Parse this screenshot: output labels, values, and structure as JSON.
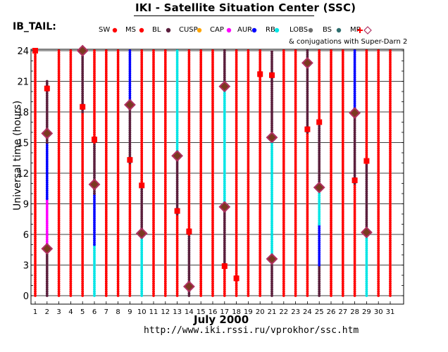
{
  "title": "IKI - Satellite Situation Center (SSC)",
  "panel_label": "IB_TAIL:",
  "legend": [
    {
      "label": "SW",
      "color": "#ff0000",
      "marker": "dot"
    },
    {
      "label": "MS",
      "color": "#ff0000",
      "marker": "dot"
    },
    {
      "label": "BL",
      "color": "#5a1e3c",
      "marker": "dot"
    },
    {
      "label": "CUSP",
      "color": "#ffa500",
      "marker": "dot"
    },
    {
      "label": "CAP",
      "color": "#ff00ff",
      "marker": "dot"
    },
    {
      "label": "AUR",
      "color": "#0000ff",
      "marker": "dot"
    },
    {
      "label": "RB",
      "color": "#00e5e5",
      "marker": "dot"
    },
    {
      "label": "LOBS",
      "color": "#707070",
      "marker": "dot"
    },
    {
      "label": "BS",
      "color": "#2e6e6e",
      "marker": "dot"
    },
    {
      "label": "MP",
      "color": "#ff0000",
      "marker": "cross"
    },
    {
      "label": "",
      "color": "#b03060",
      "marker": "diamond"
    }
  ],
  "conjugations_note": "& conjugations with Super-Darn 2",
  "x_axis_label": "July    2000",
  "y_axis_label": "Universal time (hours)",
  "url": "http://www.iki.rssi.ru/vprokhor/ssc.htm",
  "colors": {
    "SW": "#ff0000",
    "BL": "#5a1e3c",
    "CUSP": "#ffa500",
    "CAP": "#ff00ff",
    "AUR": "#0000ff",
    "RB": "#00e5e5",
    "LOBS": "#707070",
    "BS": "#2e6e6e",
    "diamond_edge": "#b03060",
    "diamond_fill": "#7a3a20"
  },
  "chart_data": {
    "type": "scatter",
    "xlabel": "July    2000",
    "ylabel": "Universal time (hours)",
    "xlim": [
      1,
      31
    ],
    "ylim": [
      0,
      24
    ],
    "x_ticks": [
      1,
      2,
      3,
      4,
      5,
      6,
      7,
      8,
      9,
      10,
      11,
      12,
      13,
      14,
      15,
      16,
      17,
      18,
      19,
      20,
      21,
      22,
      23,
      24,
      25,
      26,
      27,
      28,
      29,
      30,
      31
    ],
    "y_ticks": [
      0,
      3,
      6,
      9,
      12,
      15,
      18,
      21,
      24
    ],
    "grid": true,
    "columns": [
      {
        "day": 1,
        "segments": [
          {
            "from": 0,
            "to": 24,
            "region": "SW"
          }
        ]
      },
      {
        "day": 2,
        "segments": [
          {
            "from": 0,
            "to": 4.5,
            "region": "BL"
          },
          {
            "from": 4.5,
            "to": 9.5,
            "region": "CAP"
          },
          {
            "from": 9.5,
            "to": 15,
            "region": "AUR"
          },
          {
            "from": 15,
            "to": 21,
            "region": "BL"
          }
        ]
      },
      {
        "day": 3,
        "segments": [
          {
            "from": 0,
            "to": 24,
            "region": "SW"
          }
        ]
      },
      {
        "day": 4,
        "segments": [
          {
            "from": 0,
            "to": 24,
            "region": "SW"
          }
        ]
      },
      {
        "day": 5,
        "segments": [
          {
            "from": 0,
            "to": 18,
            "region": "SW"
          },
          {
            "from": 18,
            "to": 24,
            "region": "BL"
          }
        ]
      },
      {
        "day": 6,
        "segments": [
          {
            "from": 0,
            "to": 5,
            "region": "RB"
          },
          {
            "from": 5,
            "to": 10,
            "region": "AUR"
          },
          {
            "from": 10,
            "to": 15,
            "region": "BL"
          },
          {
            "from": 15,
            "to": 24,
            "region": "SW"
          }
        ]
      },
      {
        "day": 7,
        "segments": [
          {
            "from": 0,
            "to": 24,
            "region": "SW"
          }
        ]
      },
      {
        "day": 8,
        "segments": [
          {
            "from": 0,
            "to": 24,
            "region": "SW"
          }
        ]
      },
      {
        "day": 9,
        "segments": [
          {
            "from": 0,
            "to": 13,
            "region": "SW"
          },
          {
            "from": 13,
            "to": 19,
            "region": "BL"
          },
          {
            "from": 19,
            "to": 24,
            "region": "AUR"
          }
        ]
      },
      {
        "day": 10,
        "segments": [
          {
            "from": 0,
            "to": 6,
            "region": "RB"
          },
          {
            "from": 6,
            "to": 11,
            "region": "BL"
          },
          {
            "from": 11,
            "to": 24,
            "region": "SW"
          }
        ]
      },
      {
        "day": 11,
        "segments": [
          {
            "from": 0,
            "to": 24,
            "region": "SW"
          }
        ]
      },
      {
        "day": 12,
        "segments": [
          {
            "from": 0,
            "to": 24,
            "region": "SW"
          }
        ]
      },
      {
        "day": 13,
        "segments": [
          {
            "from": 0,
            "to": 8,
            "region": "SW"
          },
          {
            "from": 8,
            "to": 14,
            "region": "BL"
          },
          {
            "from": 14,
            "to": 24,
            "region": "RB"
          }
        ]
      },
      {
        "day": 14,
        "segments": [
          {
            "from": 0,
            "to": 6,
            "region": "BL"
          },
          {
            "from": 6,
            "to": 24,
            "region": "SW"
          }
        ]
      },
      {
        "day": 15,
        "segments": [
          {
            "from": 0,
            "to": 24,
            "region": "SW"
          }
        ]
      },
      {
        "day": 16,
        "segments": [
          {
            "from": 0,
            "to": 24,
            "region": "SW"
          }
        ]
      },
      {
        "day": 17,
        "segments": [
          {
            "from": 0,
            "to": 3,
            "region": "SW"
          },
          {
            "from": 3,
            "to": 9,
            "region": "BL"
          },
          {
            "from": 9,
            "to": 21,
            "region": "RB"
          },
          {
            "from": 21,
            "to": 24,
            "region": "BL"
          }
        ]
      },
      {
        "day": 18,
        "segments": [
          {
            "from": 0,
            "to": 24,
            "region": "SW"
          }
        ]
      },
      {
        "day": 19,
        "segments": [
          {
            "from": 0,
            "to": 24,
            "region": "SW"
          }
        ]
      },
      {
        "day": 20,
        "segments": [
          {
            "from": 0,
            "to": 24,
            "region": "SW"
          }
        ]
      },
      {
        "day": 21,
        "segments": [
          {
            "from": 0,
            "to": 3.5,
            "region": "BL"
          },
          {
            "from": 3.5,
            "to": 15.5,
            "region": "RB"
          },
          {
            "from": 15.5,
            "to": 24,
            "region": "BL"
          }
        ]
      },
      {
        "day": 22,
        "segments": [
          {
            "from": 0,
            "to": 24,
            "region": "SW"
          }
        ]
      },
      {
        "day": 23,
        "segments": [
          {
            "from": 0,
            "to": 24,
            "region": "SW"
          }
        ]
      },
      {
        "day": 24,
        "segments": [
          {
            "from": 0,
            "to": 16,
            "region": "SW"
          },
          {
            "from": 16,
            "to": 24,
            "region": "BL"
          }
        ]
      },
      {
        "day": 25,
        "segments": [
          {
            "from": 0,
            "to": 3,
            "region": "BL"
          },
          {
            "from": 3,
            "to": 7,
            "region": "AUR"
          },
          {
            "from": 7,
            "to": 11,
            "region": "RB"
          },
          {
            "from": 11,
            "to": 17,
            "region": "BL"
          },
          {
            "from": 17,
            "to": 24,
            "region": "SW"
          }
        ]
      },
      {
        "day": 26,
        "segments": [
          {
            "from": 0,
            "to": 24,
            "region": "SW"
          }
        ]
      },
      {
        "day": 27,
        "segments": [
          {
            "from": 0,
            "to": 24,
            "region": "SW"
          }
        ]
      },
      {
        "day": 28,
        "segments": [
          {
            "from": 0,
            "to": 11,
            "region": "SW"
          },
          {
            "from": 11,
            "to": 18,
            "region": "BL"
          },
          {
            "from": 18,
            "to": 24,
            "region": "AUR"
          }
        ]
      },
      {
        "day": 29,
        "segments": [
          {
            "from": 0,
            "to": 6,
            "region": "RB"
          },
          {
            "from": 6,
            "to": 13,
            "region": "BL"
          },
          {
            "from": 13,
            "to": 24,
            "region": "SW"
          }
        ]
      },
      {
        "day": 30,
        "segments": [
          {
            "from": 0,
            "to": 24,
            "region": "SW"
          }
        ]
      },
      {
        "day": 31,
        "segments": [
          {
            "from": 0,
            "to": 24,
            "region": "SW"
          }
        ]
      }
    ],
    "magnetopause_crossings": [
      {
        "day": 1,
        "hour": 24
      },
      {
        "day": 2,
        "hour": 20.3
      },
      {
        "day": 5,
        "hour": 18.5
      },
      {
        "day": 6,
        "hour": 15.3
      },
      {
        "day": 9,
        "hour": 13.3
      },
      {
        "day": 10,
        "hour": 10.8
      },
      {
        "day": 13,
        "hour": 8.3
      },
      {
        "day": 14,
        "hour": 6.3
      },
      {
        "day": 17,
        "hour": 2.9
      },
      {
        "day": 18,
        "hour": 1.7
      },
      {
        "day": 20,
        "hour": 21.7
      },
      {
        "day": 21,
        "hour": 21.6
      },
      {
        "day": 24,
        "hour": 16.3
      },
      {
        "day": 25,
        "hour": 17
      },
      {
        "day": 28,
        "hour": 11.3
      },
      {
        "day": 29,
        "hour": 13.2
      }
    ],
    "conjugations": [
      {
        "day": 2,
        "hour": 4.6
      },
      {
        "day": 2,
        "hour": 15.9
      },
      {
        "day": 5,
        "hour": 24
      },
      {
        "day": 6,
        "hour": 10.9
      },
      {
        "day": 9,
        "hour": 18.7
      },
      {
        "day": 10,
        "hour": 6.1
      },
      {
        "day": 13,
        "hour": 13.7
      },
      {
        "day": 14,
        "hour": 0.9
      },
      {
        "day": 17,
        "hour": 8.7
      },
      {
        "day": 17,
        "hour": 20.5
      },
      {
        "day": 21,
        "hour": 3.6
      },
      {
        "day": 21,
        "hour": 15.5
      },
      {
        "day": 24,
        "hour": 22.8
      },
      {
        "day": 25,
        "hour": 10.6
      },
      {
        "day": 28,
        "hour": 17.9
      },
      {
        "day": 29,
        "hour": 6.2
      }
    ]
  }
}
